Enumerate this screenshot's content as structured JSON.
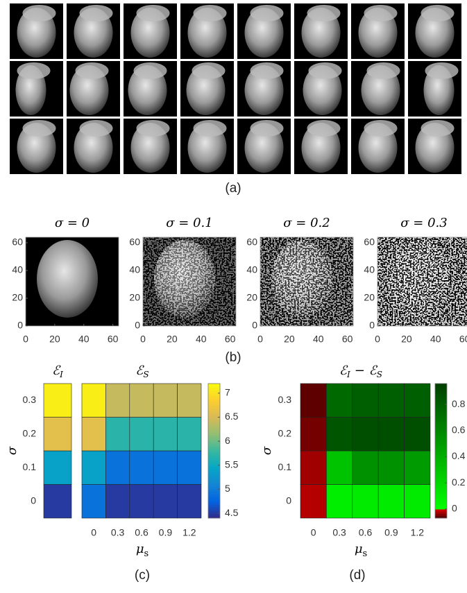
{
  "figure_a": {
    "label": "(a)"
  },
  "figure_b": {
    "label": "(b)",
    "panels": [
      {
        "title": "σ = 0"
      },
      {
        "title": "σ = 0.1"
      },
      {
        "title": "σ = 0.2"
      },
      {
        "title": "σ = 0.3"
      }
    ],
    "xlim": [
      0,
      64
    ],
    "ylim": [
      0,
      64
    ],
    "xticks": [
      0,
      20,
      40,
      60
    ],
    "yticks": [
      0,
      20,
      40,
      60
    ]
  },
  "figure_c": {
    "label": "(c)"
  },
  "figure_d": {
    "label": "(d)"
  },
  "chart_data": [
    {
      "type": "heatmap",
      "title": {
        "symbol": "ℰ",
        "sub": "I"
      },
      "ylabel": "σ",
      "rows": [
        0,
        0.1,
        0.2,
        0.3
      ],
      "values": [
        4.5,
        5.4,
        6.6,
        7.1
      ]
    },
    {
      "type": "heatmap",
      "title": {
        "symbol": "ℰ",
        "sub": "S"
      },
      "xlabel": {
        "symbol": "μ",
        "sub": "s"
      },
      "categories": [
        0,
        0.3,
        0.6,
        0.9,
        1.2
      ],
      "values": [
        [
          4.9,
          4.5,
          4.5,
          4.5,
          4.5
        ],
        [
          5.4,
          4.9,
          4.9,
          4.9,
          4.9
        ],
        [
          6.6,
          5.7,
          5.7,
          5.7,
          5.7
        ],
        [
          7.1,
          6.4,
          6.4,
          6.4,
          6.4
        ]
      ],
      "clim": [
        4.4,
        7.2
      ],
      "colorbar_ticks": [
        4.5,
        5,
        5.5,
        6,
        6.5,
        7
      ],
      "colormap": [
        "#352a87",
        "#0363e1",
        "#1485d4",
        "#06a7c6",
        "#38b99e",
        "#92bf73",
        "#d9ba56",
        "#fcce2e",
        "#f9fb0e"
      ]
    },
    {
      "type": "heatmap",
      "title": {
        "left": "ℰ",
        "left_sub": "I",
        "op": "−",
        "right": "ℰ",
        "right_sub": "S"
      },
      "ylabel": "σ",
      "rows": [
        0,
        0.1,
        0.2,
        0.3
      ],
      "xlabel": {
        "symbol": "μ",
        "sub": "s"
      },
      "categories": [
        0,
        0.3,
        0.6,
        0.9,
        1.2
      ],
      "values": [
        [
          -0.02,
          0.08,
          0.1,
          0.1,
          0.1
        ],
        [
          -0.03,
          0.3,
          0.55,
          0.55,
          0.5
        ],
        [
          -0.05,
          0.85,
          0.88,
          0.88,
          0.88
        ],
        [
          -0.06,
          0.75,
          0.8,
          0.8,
          0.8
        ]
      ],
      "clim": [
        -0.07,
        0.96
      ],
      "colorbar_ticks": [
        0,
        0.2,
        0.4,
        0.6,
        0.8
      ],
      "colormap_split": 0,
      "negative_colors": [
        "#4a0000",
        "#e00000"
      ],
      "colormap": [
        "#00ff00",
        "#003f00"
      ]
    }
  ]
}
